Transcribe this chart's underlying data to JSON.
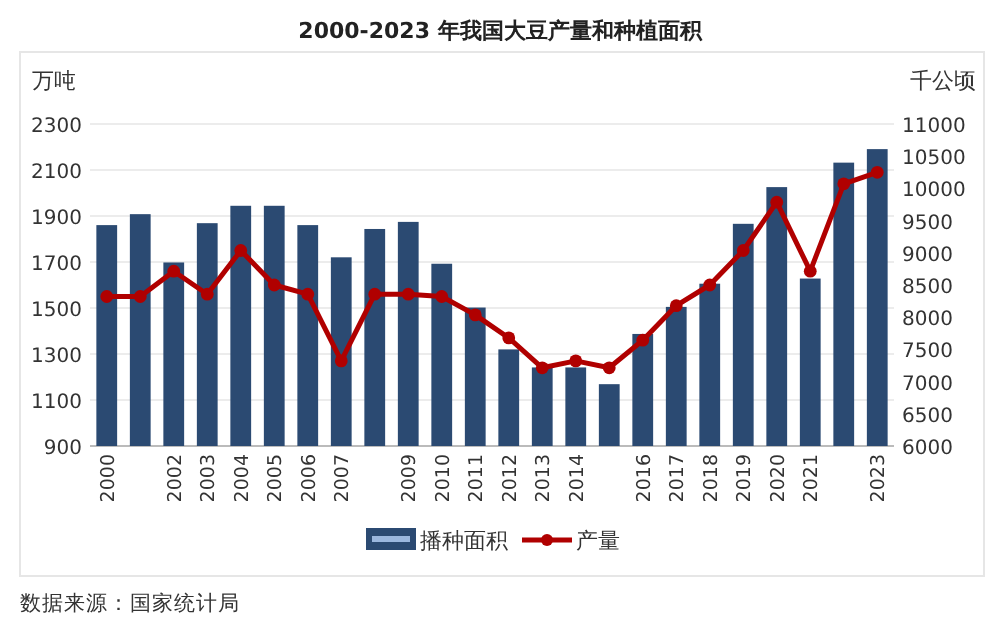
{
  "chart_data": {
    "type": "bar",
    "title": "2000-2023 年我国大豆产量和种植面积",
    "ylabel": "万吨",
    "y2label": "千公顷",
    "categories": [
      "2000",
      null,
      "2002",
      "2003",
      "2004",
      "2005",
      "2006",
      "2007",
      null,
      "2009",
      "2010",
      "2011",
      "2012",
      "2013",
      "2014",
      null,
      "2016",
      "2017",
      "2018",
      "2019",
      "2020",
      "2021",
      null,
      "2023"
    ],
    "series": [
      {
        "name": "播种面积",
        "axis": "y2",
        "color": "#2b4a72",
        "values": [
          9430,
          9600,
          8850,
          9460,
          9730,
          9730,
          9430,
          8930,
          9370,
          9480,
          8830,
          8150,
          7500,
          7220,
          7220,
          6960,
          7740,
          8160,
          8520,
          9450,
          10020,
          8600,
          10400,
          10610
        ]
      },
      {
        "name": "产量",
        "type": "line",
        "color": "#b00000",
        "values": [
          1550,
          1550,
          1660,
          1560,
          1750,
          1600,
          1560,
          1270,
          1560,
          1560,
          1550,
          1470,
          1370,
          1240,
          1270,
          1240,
          1360,
          1510,
          1600,
          1750,
          1960,
          1660,
          2040,
          2090
        ]
      }
    ],
    "ylim": [
      900,
      2300
    ],
    "yticks": [
      900,
      1100,
      1300,
      1500,
      1700,
      1900,
      2100,
      2300
    ],
    "y2lim": [
      6000,
      11000
    ],
    "y2ticks": [
      6000,
      6500,
      7000,
      7500,
      8000,
      8500,
      9000,
      9500,
      10000,
      10500,
      11000
    ],
    "grid": "y",
    "legend": "bottom",
    "marker": "circle",
    "annotations": [
      "数据来源：国家统计局"
    ]
  }
}
